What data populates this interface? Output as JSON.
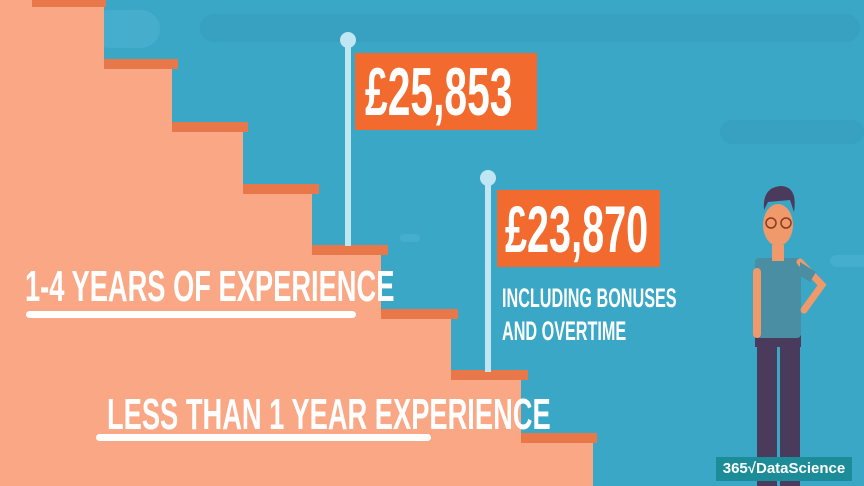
{
  "colors": {
    "background": "#3ba7c7",
    "stairs": "#f9a784",
    "tread": "#e8784a",
    "flag": "#f26a2e",
    "pole": "#bfe6f2",
    "logo_bg": "#1c8c98"
  },
  "flags": [
    {
      "value": "£25,853"
    },
    {
      "value": "£23,870",
      "note_lines": [
        "INCLUDING BONUSES",
        "AND OVERTIME"
      ]
    }
  ],
  "labels": {
    "experience_1_4": "1-4 YEARS OF EXPERIENCE",
    "experience_lt1": "LESS THAN 1 YEAR EXPERIENCE"
  },
  "logo": {
    "text": "365√DataScience"
  }
}
